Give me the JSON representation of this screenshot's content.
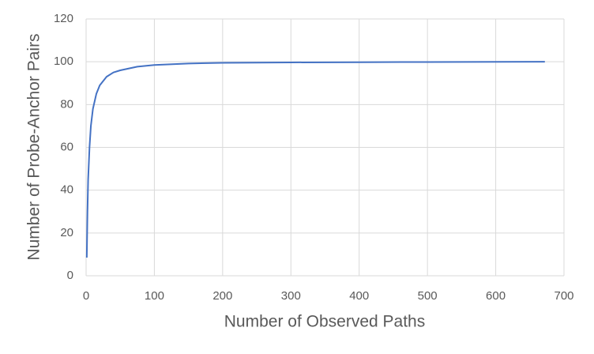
{
  "chart_data": {
    "type": "line",
    "x_label": "Number of Observed Paths",
    "y_label": "Number of Probe-Anchor Pairs",
    "series": [
      {
        "color": "#4472c4",
        "x": [
          1,
          2,
          3,
          5,
          7,
          10,
          15,
          20,
          30,
          40,
          50,
          75,
          100,
          150,
          200,
          300,
          400,
          500,
          672
        ],
        "values": [
          8.5,
          30,
          45,
          60,
          70,
          78,
          85,
          89,
          93,
          95,
          96,
          97.7,
          98.5,
          99.2,
          99.5,
          99.7,
          99.8,
          99.9,
          100
        ]
      }
    ],
    "xlim": [
      0,
      700
    ],
    "xticks": [
      0,
      100,
      200,
      300,
      400,
      500,
      600,
      700
    ],
    "ylim": [
      0,
      120
    ],
    "yticks": [
      0,
      20,
      40,
      60,
      80,
      100,
      120
    ],
    "grid": true
  }
}
